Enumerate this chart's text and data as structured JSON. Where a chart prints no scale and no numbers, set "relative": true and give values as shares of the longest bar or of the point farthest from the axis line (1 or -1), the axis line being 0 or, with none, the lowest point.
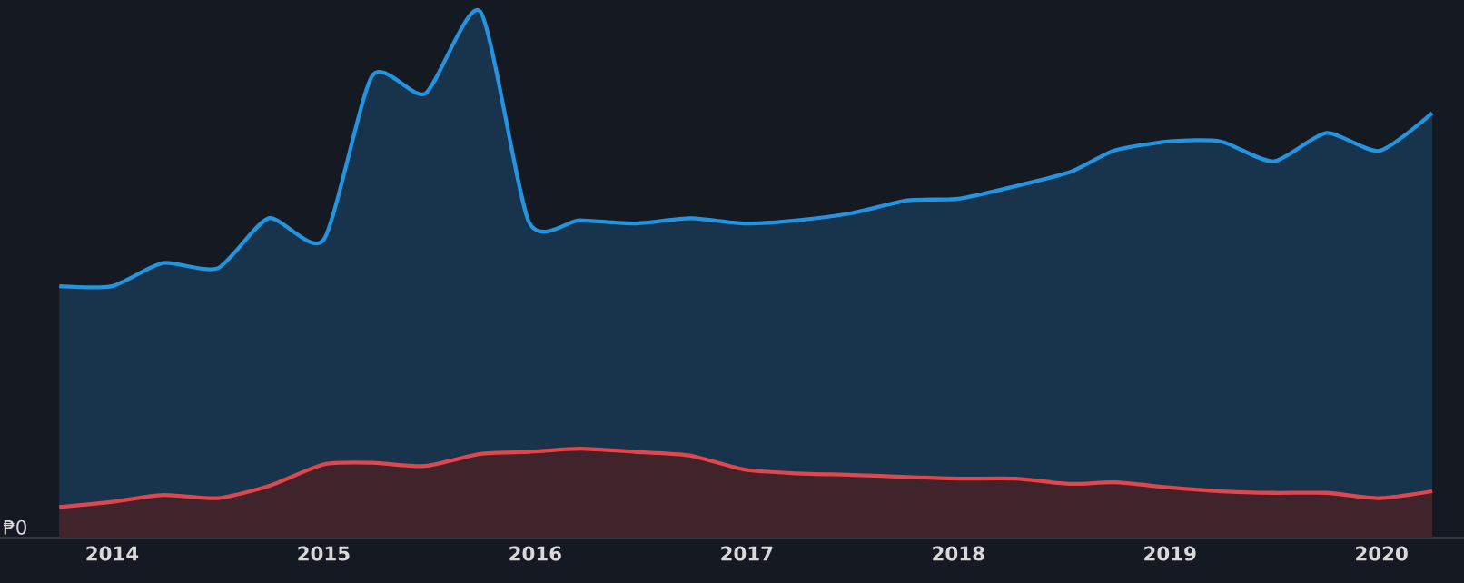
{
  "chart_data": {
    "type": "area",
    "relative": true,
    "x": [
      2013.75,
      2014.0,
      2014.24,
      2014.5,
      2014.74,
      2015.0,
      2015.23,
      2015.48,
      2015.74,
      2015.97,
      2016.21,
      2016.47,
      2016.73,
      2016.99,
      2017.24,
      2017.5,
      2017.76,
      2018.0,
      2018.27,
      2018.53,
      2018.74,
      2019.0,
      2019.24,
      2019.49,
      2019.74,
      2019.99,
      2020.24
    ],
    "xlim": [
      2013.47,
      2020.39
    ],
    "xticks": [
      2014,
      2015,
      2016,
      2017,
      2018,
      2019,
      2020
    ],
    "series": [
      {
        "color": "#2394df",
        "values": [
          0.478,
          0.478,
          0.522,
          0.512,
          0.607,
          0.566,
          0.878,
          0.844,
          1.0,
          0.6,
          0.603,
          0.597,
          0.607,
          0.597,
          0.603,
          0.617,
          0.641,
          0.644,
          0.668,
          0.695,
          0.736,
          0.753,
          0.753,
          0.715,
          0.769,
          0.735,
          0.807
        ]
      },
      {
        "color": "#e0474c",
        "values": [
          0.058,
          0.068,
          0.081,
          0.075,
          0.098,
          0.139,
          0.142,
          0.136,
          0.159,
          0.163,
          0.169,
          0.163,
          0.156,
          0.129,
          0.122,
          0.119,
          0.115,
          0.112,
          0.112,
          0.102,
          0.105,
          0.095,
          0.088,
          0.085,
          0.085,
          0.075,
          0.088
        ]
      }
    ],
    "annotations": [
      "₱0"
    ]
  }
}
